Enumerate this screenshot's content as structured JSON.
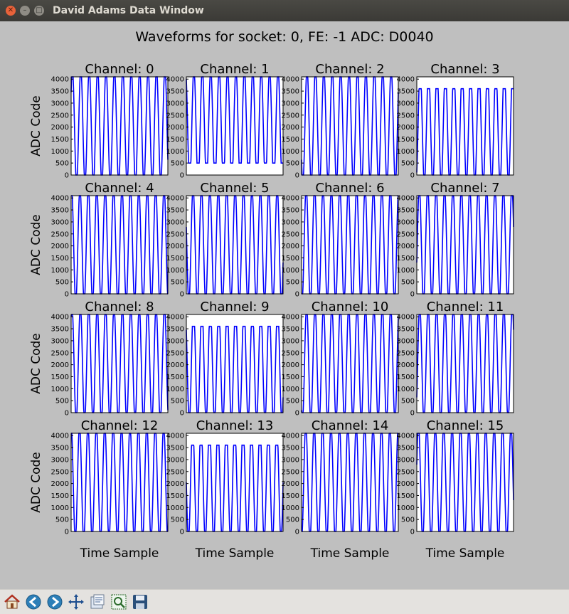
{
  "window": {
    "title": "David Adams Data Window"
  },
  "figure_title": "Waveforms for socket: 0, FE: -1 ADC: D0040",
  "ylabel": "ADC Code",
  "xlabel": "Time Sample",
  "yticks": [
    "0",
    "500",
    "1000",
    "1500",
    "2000",
    "2500",
    "3000",
    "3500",
    "4000"
  ],
  "colors": {
    "trace": "#0000ff",
    "figure_bg": "#bfbfbf",
    "axes_bg": "#ffffff"
  },
  "toolbar": [
    {
      "name": "home-icon"
    },
    {
      "name": "back-arrow-icon"
    },
    {
      "name": "forward-arrow-icon"
    },
    {
      "name": "pan-icon"
    },
    {
      "name": "configure-subplots-icon"
    },
    {
      "name": "zoom-rect-icon"
    },
    {
      "name": "save-icon"
    }
  ],
  "chart_data": [
    {
      "type": "line",
      "title": "Channel: 0",
      "ylim": [
        0,
        4096
      ],
      "periods": 11.5,
      "phase": 0.1,
      "clip_low": 0,
      "clip_high": 4096,
      "ylabel": "ADC Code"
    },
    {
      "type": "line",
      "title": "Channel: 1",
      "ylim": [
        0,
        4096
      ],
      "periods": 11.5,
      "phase": 0.35,
      "clip_low": 500,
      "clip_high": 4096
    },
    {
      "type": "line",
      "title": "Channel: 2",
      "ylim": [
        0,
        4096
      ],
      "periods": 11.5,
      "phase": 0.6,
      "clip_low": 0,
      "clip_high": 4096
    },
    {
      "type": "line",
      "title": "Channel: 3",
      "ylim": [
        0,
        4096
      ],
      "periods": 11.5,
      "phase": 0.85,
      "clip_low": 0,
      "clip_high": 3600
    },
    {
      "type": "line",
      "title": "Channel: 4",
      "ylim": [
        0,
        4096
      ],
      "periods": 11.5,
      "phase": 0.2,
      "clip_low": 0,
      "clip_high": 4096,
      "ylabel": "ADC Code"
    },
    {
      "type": "line",
      "title": "Channel: 5",
      "ylim": [
        0,
        4096
      ],
      "periods": 11.5,
      "phase": 0.45,
      "clip_low": 0,
      "clip_high": 4096
    },
    {
      "type": "line",
      "title": "Channel: 6",
      "ylim": [
        0,
        4096
      ],
      "periods": 11.5,
      "phase": 0.7,
      "clip_low": 0,
      "clip_high": 4096
    },
    {
      "type": "line",
      "title": "Channel: 7",
      "ylim": [
        0,
        4096
      ],
      "periods": 11.5,
      "phase": 0.95,
      "clip_low": 0,
      "clip_high": 4096
    },
    {
      "type": "line",
      "title": "Channel: 8",
      "ylim": [
        0,
        4096
      ],
      "periods": 11.5,
      "phase": 0.15,
      "clip_low": 0,
      "clip_high": 4096,
      "ylabel": "ADC Code"
    },
    {
      "type": "line",
      "title": "Channel: 9",
      "ylim": [
        0,
        4096
      ],
      "periods": 11.5,
      "phase": 0.4,
      "clip_low": 0,
      "clip_high": 3600
    },
    {
      "type": "line",
      "title": "Channel: 10",
      "ylim": [
        0,
        4096
      ],
      "periods": 11.5,
      "phase": 0.65,
      "clip_low": 0,
      "clip_high": 4096
    },
    {
      "type": "line",
      "title": "Channel: 11",
      "ylim": [
        0,
        4096
      ],
      "periods": 11.5,
      "phase": 0.9,
      "clip_low": 0,
      "clip_high": 4096
    },
    {
      "type": "line",
      "title": "Channel: 12",
      "ylim": [
        0,
        4096
      ],
      "periods": 11.5,
      "phase": 0.25,
      "clip_low": 0,
      "clip_high": 4096,
      "ylabel": "ADC Code",
      "xlabel": "Time Sample"
    },
    {
      "type": "line",
      "title": "Channel: 13",
      "ylim": [
        0,
        4096
      ],
      "periods": 11.5,
      "phase": 0.5,
      "clip_low": 0,
      "clip_high": 3600,
      "xlabel": "Time Sample"
    },
    {
      "type": "line",
      "title": "Channel: 14",
      "ylim": [
        0,
        4096
      ],
      "periods": 11.5,
      "phase": 0.75,
      "clip_low": 0,
      "clip_high": 4096,
      "xlabel": "Time Sample"
    },
    {
      "type": "line",
      "title": "Channel: 15",
      "ylim": [
        0,
        4096
      ],
      "periods": 11.5,
      "phase": 0.05,
      "clip_low": 0,
      "clip_high": 4096,
      "xlabel": "Time Sample"
    }
  ]
}
